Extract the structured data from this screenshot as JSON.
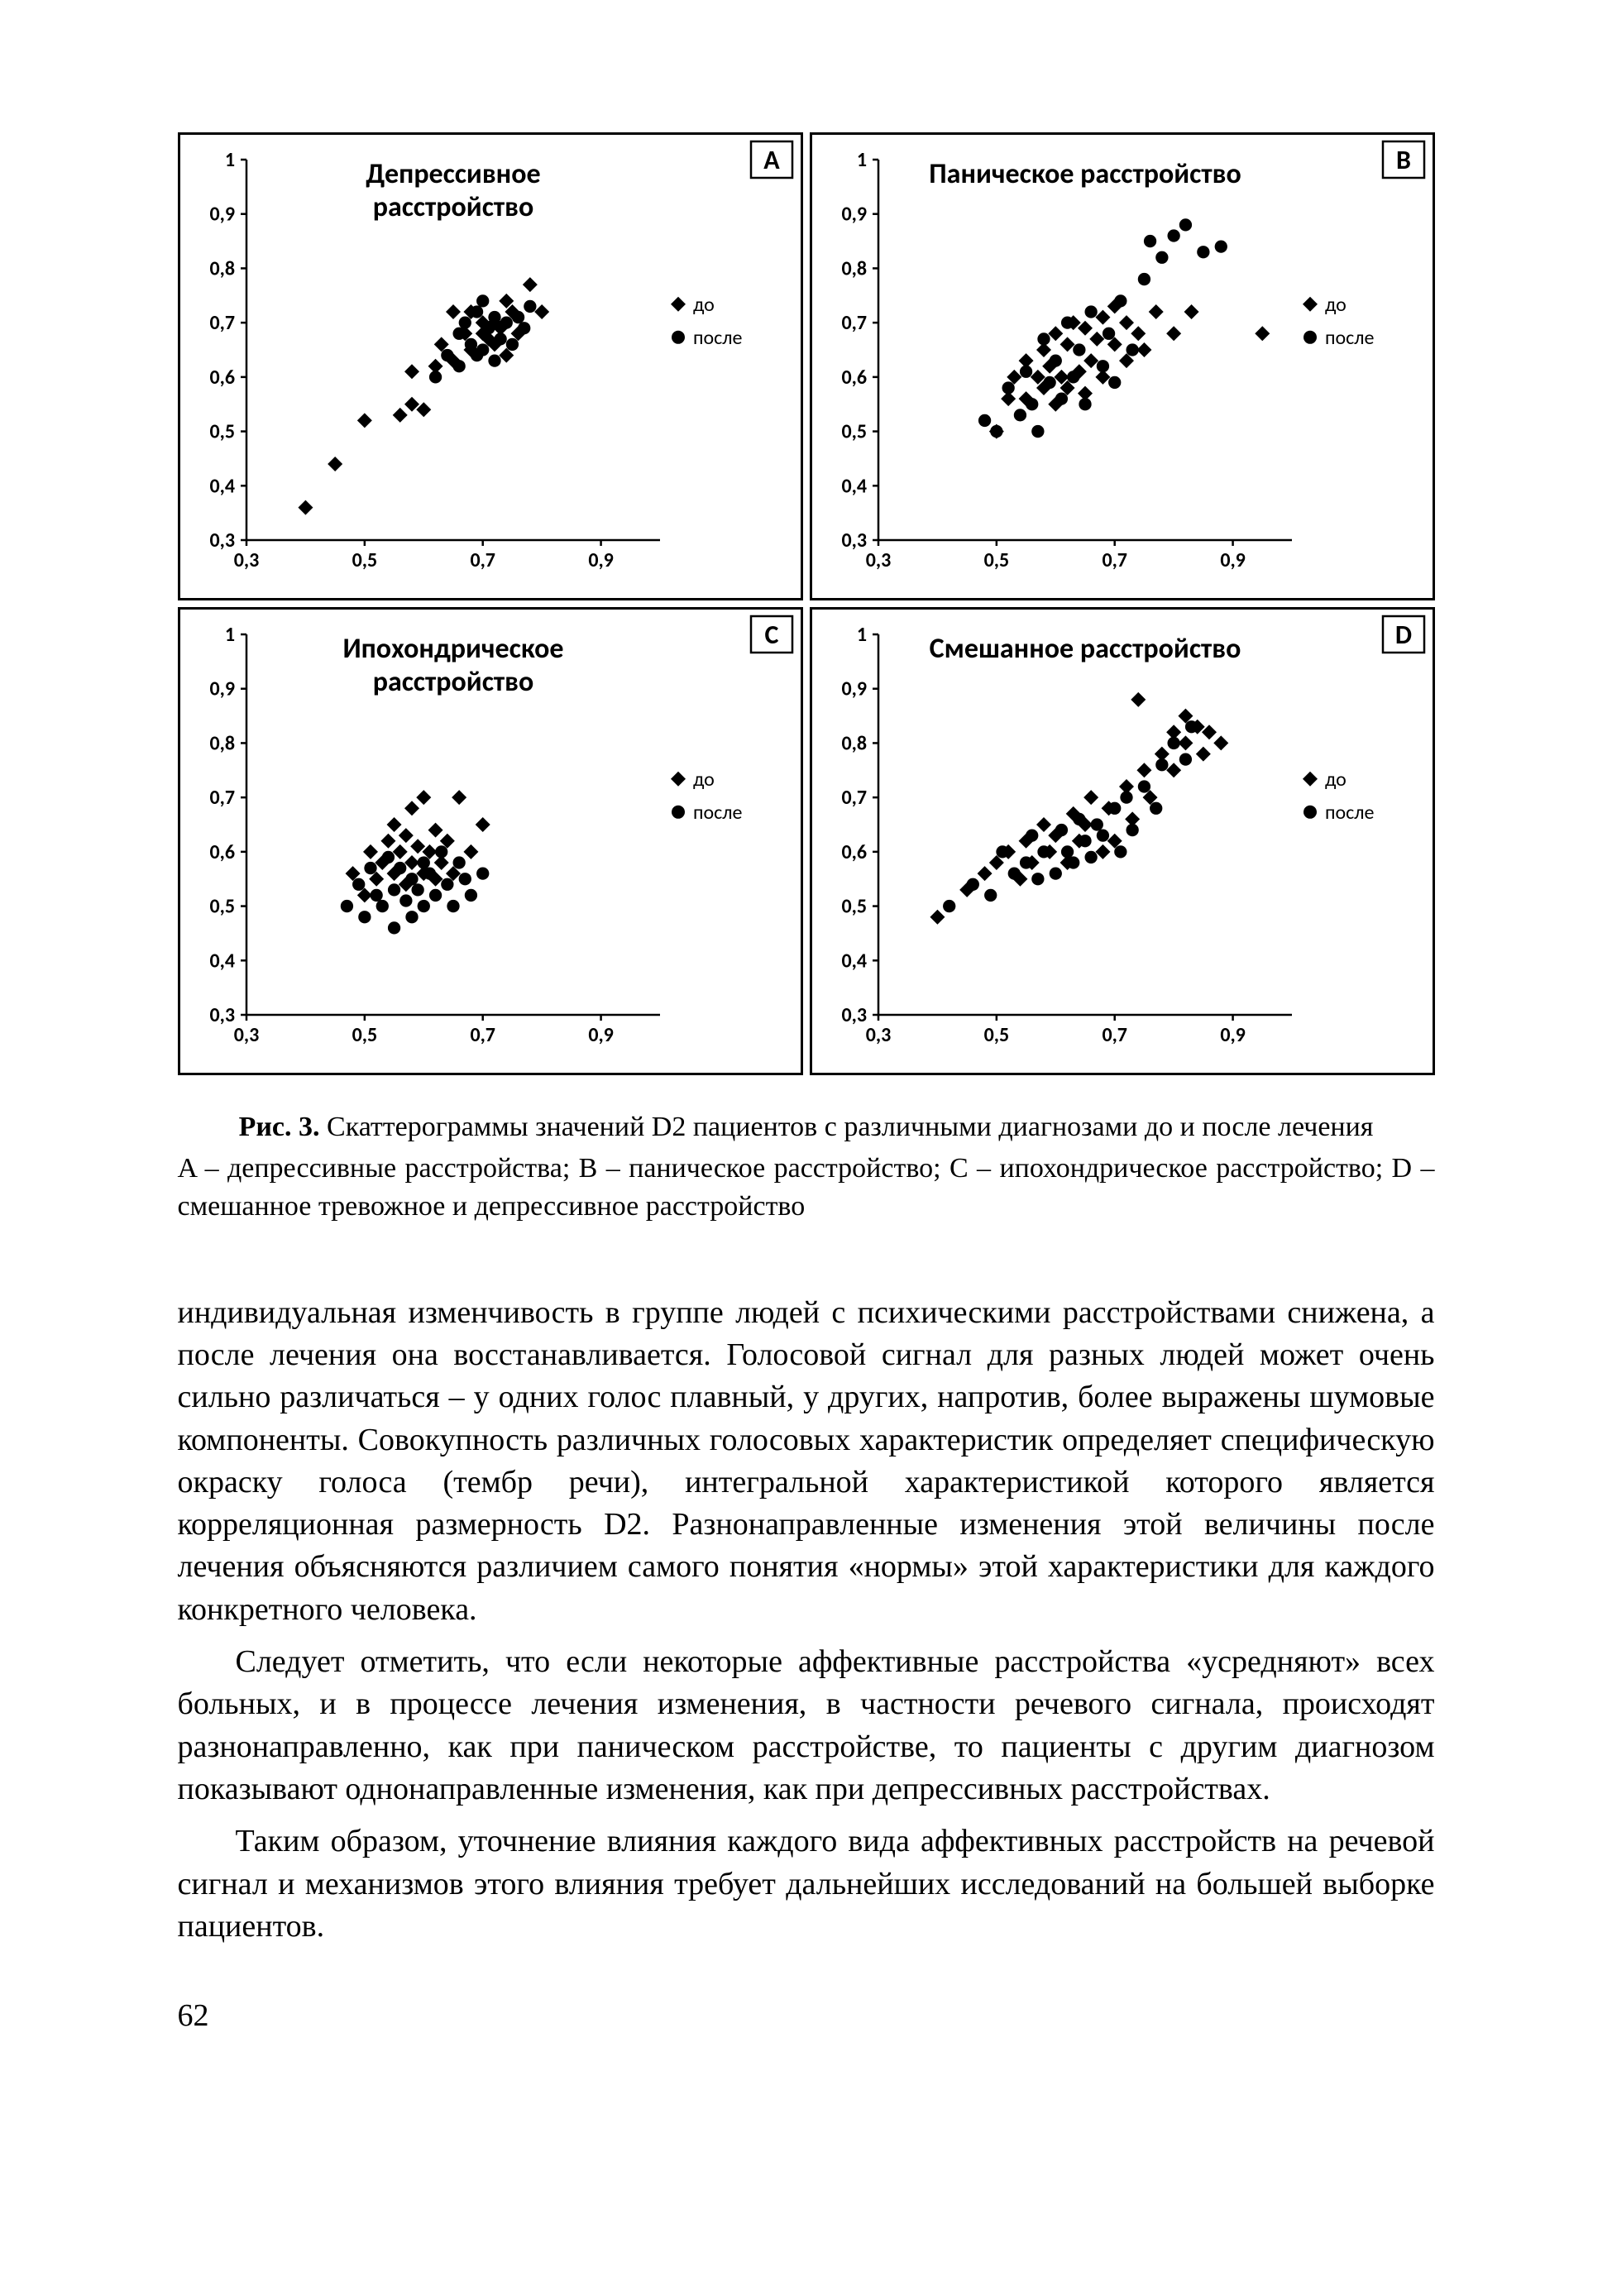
{
  "figure": {
    "axis": {
      "xlim": [
        0.3,
        1.0
      ],
      "ylim": [
        0.3,
        1.0
      ],
      "xticks": [
        0.3,
        0.5,
        0.7,
        0.9
      ],
      "yticks": [
        0.3,
        0.4,
        0.5,
        0.6,
        0.7,
        0.8,
        0.9,
        1.0
      ],
      "xtick_labels": [
        "0,3",
        "0,5",
        "0,7",
        "0,9"
      ],
      "ytick_labels": [
        "0,3",
        "0,4",
        "0,5",
        "0,6",
        "0,7",
        "0,8",
        "0,9",
        "1"
      ],
      "tick_fontsize": 24,
      "title_fontsize": 34,
      "label_fontsize": 24,
      "background_color": "#ffffff",
      "axis_color": "#000000",
      "marker_color": "#000000",
      "marker_size": 9
    },
    "legend": {
      "items": [
        {
          "marker": "diamond",
          "label": "до"
        },
        {
          "marker": "circle",
          "label": "после"
        }
      ]
    },
    "panels": [
      {
        "letter": "A",
        "title": "Депрессивное расстройство",
        "title_lines": [
          "Депрессивное",
          "расстройство"
        ],
        "before": [
          [
            0.4,
            0.36
          ],
          [
            0.45,
            0.44
          ],
          [
            0.5,
            0.52
          ],
          [
            0.56,
            0.53
          ],
          [
            0.58,
            0.55
          ],
          [
            0.6,
            0.54
          ],
          [
            0.58,
            0.61
          ],
          [
            0.62,
            0.62
          ],
          [
            0.63,
            0.66
          ],
          [
            0.65,
            0.63
          ],
          [
            0.65,
            0.72
          ],
          [
            0.67,
            0.68
          ],
          [
            0.68,
            0.65
          ],
          [
            0.68,
            0.72
          ],
          [
            0.7,
            0.68
          ],
          [
            0.7,
            0.7
          ],
          [
            0.71,
            0.67
          ],
          [
            0.72,
            0.66
          ],
          [
            0.72,
            0.7
          ],
          [
            0.73,
            0.69
          ],
          [
            0.74,
            0.64
          ],
          [
            0.74,
            0.74
          ],
          [
            0.75,
            0.72
          ],
          [
            0.76,
            0.68
          ],
          [
            0.78,
            0.77
          ],
          [
            0.8,
            0.72
          ]
        ],
        "after": [
          [
            0.62,
            0.6
          ],
          [
            0.64,
            0.64
          ],
          [
            0.66,
            0.62
          ],
          [
            0.66,
            0.68
          ],
          [
            0.67,
            0.7
          ],
          [
            0.68,
            0.66
          ],
          [
            0.69,
            0.64
          ],
          [
            0.69,
            0.72
          ],
          [
            0.7,
            0.65
          ],
          [
            0.7,
            0.74
          ],
          [
            0.71,
            0.69
          ],
          [
            0.72,
            0.63
          ],
          [
            0.72,
            0.71
          ],
          [
            0.73,
            0.67
          ],
          [
            0.74,
            0.7
          ],
          [
            0.75,
            0.66
          ],
          [
            0.76,
            0.71
          ],
          [
            0.77,
            0.69
          ],
          [
            0.78,
            0.73
          ]
        ]
      },
      {
        "letter": "B",
        "title": "Паническое расстройство",
        "title_lines": [
          "Паническое расстройство"
        ],
        "before": [
          [
            0.5,
            0.5
          ],
          [
            0.52,
            0.56
          ],
          [
            0.53,
            0.6
          ],
          [
            0.55,
            0.56
          ],
          [
            0.55,
            0.63
          ],
          [
            0.57,
            0.6
          ],
          [
            0.58,
            0.58
          ],
          [
            0.58,
            0.65
          ],
          [
            0.59,
            0.62
          ],
          [
            0.6,
            0.55
          ],
          [
            0.6,
            0.68
          ],
          [
            0.61,
            0.6
          ],
          [
            0.62,
            0.58
          ],
          [
            0.62,
            0.66
          ],
          [
            0.63,
            0.7
          ],
          [
            0.64,
            0.61
          ],
          [
            0.65,
            0.57
          ],
          [
            0.65,
            0.69
          ],
          [
            0.66,
            0.63
          ],
          [
            0.67,
            0.67
          ],
          [
            0.68,
            0.6
          ],
          [
            0.68,
            0.71
          ],
          [
            0.7,
            0.66
          ],
          [
            0.7,
            0.73
          ],
          [
            0.72,
            0.63
          ],
          [
            0.72,
            0.7
          ],
          [
            0.74,
            0.68
          ],
          [
            0.75,
            0.65
          ],
          [
            0.77,
            0.72
          ],
          [
            0.8,
            0.68
          ],
          [
            0.83,
            0.72
          ],
          [
            0.95,
            0.68
          ]
        ],
        "after": [
          [
            0.48,
            0.52
          ],
          [
            0.5,
            0.5
          ],
          [
            0.52,
            0.58
          ],
          [
            0.54,
            0.53
          ],
          [
            0.55,
            0.61
          ],
          [
            0.56,
            0.55
          ],
          [
            0.57,
            0.5
          ],
          [
            0.58,
            0.67
          ],
          [
            0.59,
            0.59
          ],
          [
            0.6,
            0.63
          ],
          [
            0.61,
            0.56
          ],
          [
            0.62,
            0.7
          ],
          [
            0.63,
            0.6
          ],
          [
            0.64,
            0.65
          ],
          [
            0.65,
            0.55
          ],
          [
            0.66,
            0.72
          ],
          [
            0.68,
            0.62
          ],
          [
            0.69,
            0.68
          ],
          [
            0.7,
            0.59
          ],
          [
            0.71,
            0.74
          ],
          [
            0.73,
            0.65
          ],
          [
            0.75,
            0.78
          ],
          [
            0.76,
            0.85
          ],
          [
            0.78,
            0.82
          ],
          [
            0.8,
            0.86
          ],
          [
            0.82,
            0.88
          ],
          [
            0.85,
            0.83
          ],
          [
            0.88,
            0.84
          ]
        ]
      },
      {
        "letter": "C",
        "title": "Ипохондрическое расстройство",
        "title_lines": [
          "Ипохондрическое",
          "расстройство"
        ],
        "before": [
          [
            0.48,
            0.56
          ],
          [
            0.5,
            0.52
          ],
          [
            0.51,
            0.6
          ],
          [
            0.52,
            0.55
          ],
          [
            0.53,
            0.58
          ],
          [
            0.54,
            0.62
          ],
          [
            0.55,
            0.56
          ],
          [
            0.55,
            0.65
          ],
          [
            0.56,
            0.6
          ],
          [
            0.57,
            0.54
          ],
          [
            0.57,
            0.63
          ],
          [
            0.58,
            0.58
          ],
          [
            0.58,
            0.68
          ],
          [
            0.59,
            0.61
          ],
          [
            0.6,
            0.56
          ],
          [
            0.6,
            0.7
          ],
          [
            0.61,
            0.6
          ],
          [
            0.62,
            0.55
          ],
          [
            0.62,
            0.64
          ],
          [
            0.63,
            0.58
          ],
          [
            0.64,
            0.62
          ],
          [
            0.65,
            0.56
          ],
          [
            0.66,
            0.7
          ],
          [
            0.68,
            0.6
          ],
          [
            0.7,
            0.65
          ]
        ],
        "after": [
          [
            0.47,
            0.5
          ],
          [
            0.49,
            0.54
          ],
          [
            0.5,
            0.48
          ],
          [
            0.51,
            0.57
          ],
          [
            0.52,
            0.52
          ],
          [
            0.53,
            0.5
          ],
          [
            0.54,
            0.59
          ],
          [
            0.55,
            0.53
          ],
          [
            0.55,
            0.46
          ],
          [
            0.56,
            0.57
          ],
          [
            0.57,
            0.51
          ],
          [
            0.58,
            0.55
          ],
          [
            0.58,
            0.48
          ],
          [
            0.59,
            0.53
          ],
          [
            0.6,
            0.58
          ],
          [
            0.6,
            0.5
          ],
          [
            0.61,
            0.56
          ],
          [
            0.62,
            0.52
          ],
          [
            0.63,
            0.6
          ],
          [
            0.64,
            0.54
          ],
          [
            0.65,
            0.5
          ],
          [
            0.66,
            0.58
          ],
          [
            0.67,
            0.55
          ],
          [
            0.68,
            0.52
          ],
          [
            0.7,
            0.56
          ]
        ]
      },
      {
        "letter": "D",
        "title": "Смешанное расстройство",
        "title_lines": [
          "Смешанное расстройство"
        ],
        "before": [
          [
            0.4,
            0.48
          ],
          [
            0.45,
            0.53
          ],
          [
            0.48,
            0.56
          ],
          [
            0.5,
            0.58
          ],
          [
            0.52,
            0.6
          ],
          [
            0.54,
            0.55
          ],
          [
            0.55,
            0.62
          ],
          [
            0.56,
            0.58
          ],
          [
            0.58,
            0.65
          ],
          [
            0.59,
            0.6
          ],
          [
            0.6,
            0.63
          ],
          [
            0.62,
            0.58
          ],
          [
            0.63,
            0.67
          ],
          [
            0.64,
            0.62
          ],
          [
            0.65,
            0.65
          ],
          [
            0.66,
            0.7
          ],
          [
            0.68,
            0.6
          ],
          [
            0.69,
            0.68
          ],
          [
            0.7,
            0.62
          ],
          [
            0.72,
            0.72
          ],
          [
            0.73,
            0.66
          ],
          [
            0.74,
            0.88
          ],
          [
            0.75,
            0.75
          ],
          [
            0.76,
            0.7
          ],
          [
            0.78,
            0.78
          ],
          [
            0.8,
            0.82
          ],
          [
            0.8,
            0.75
          ],
          [
            0.82,
            0.85
          ],
          [
            0.82,
            0.8
          ],
          [
            0.84,
            0.83
          ],
          [
            0.85,
            0.78
          ],
          [
            0.86,
            0.82
          ],
          [
            0.88,
            0.8
          ]
        ],
        "after": [
          [
            0.42,
            0.5
          ],
          [
            0.46,
            0.54
          ],
          [
            0.49,
            0.52
          ],
          [
            0.51,
            0.6
          ],
          [
            0.53,
            0.56
          ],
          [
            0.55,
            0.58
          ],
          [
            0.56,
            0.63
          ],
          [
            0.57,
            0.55
          ],
          [
            0.58,
            0.6
          ],
          [
            0.6,
            0.56
          ],
          [
            0.61,
            0.64
          ],
          [
            0.62,
            0.6
          ],
          [
            0.63,
            0.58
          ],
          [
            0.64,
            0.66
          ],
          [
            0.65,
            0.62
          ],
          [
            0.66,
            0.59
          ],
          [
            0.67,
            0.65
          ],
          [
            0.68,
            0.63
          ],
          [
            0.7,
            0.68
          ],
          [
            0.71,
            0.6
          ],
          [
            0.72,
            0.7
          ],
          [
            0.73,
            0.64
          ],
          [
            0.75,
            0.72
          ],
          [
            0.77,
            0.68
          ],
          [
            0.78,
            0.76
          ],
          [
            0.8,
            0.8
          ],
          [
            0.82,
            0.77
          ],
          [
            0.83,
            0.83
          ]
        ]
      }
    ]
  },
  "caption": {
    "label": "Рис. 3.",
    "main": "Скаттерограммы значений D2 пациентов с различными диагнозами до и после лечения",
    "sub": "A – депрессивные расстройства; B – паническое расстройство; C – ипохондрическое расстройство; D – смешанное тревожное и депрессивное расстройство"
  },
  "body": {
    "p1": "индивидуальная изменчивость в группе людей с психическими расстройствами снижена, а после лечения она восстанавливается. Голосовой сигнал для разных людей может очень сильно различаться – у одних голос плавный, у других, напротив, более выражены шумовые компоненты. Совокупность различных голосовых характеристик определяет специфическую окраску голоса (тембр речи), интегральной характеристикой которого является корреляционная размерность D2. Разнонаправленные изменения этой величины после лечения объясняются различием самого понятия «нормы» этой характеристики для каждого конкретного человека.",
    "p2": "Следует отметить, что если некоторые аффективные расстройства «усредняют» всех больных, и в процессе лечения изменения, в частности речевого сигнала, происходят разнонаправленно, как при паническом расстройстве, то пациенты с другим диагнозом показывают однонаправленные изменения, как при депрессивных расстройствах.",
    "p3": "Таким образом, уточнение влияния каждого вида аффективных расстройств на речевой сигнал и механизмов этого влияния требует дальнейших исследований на большей выборке пациентов."
  },
  "page_number": "62"
}
